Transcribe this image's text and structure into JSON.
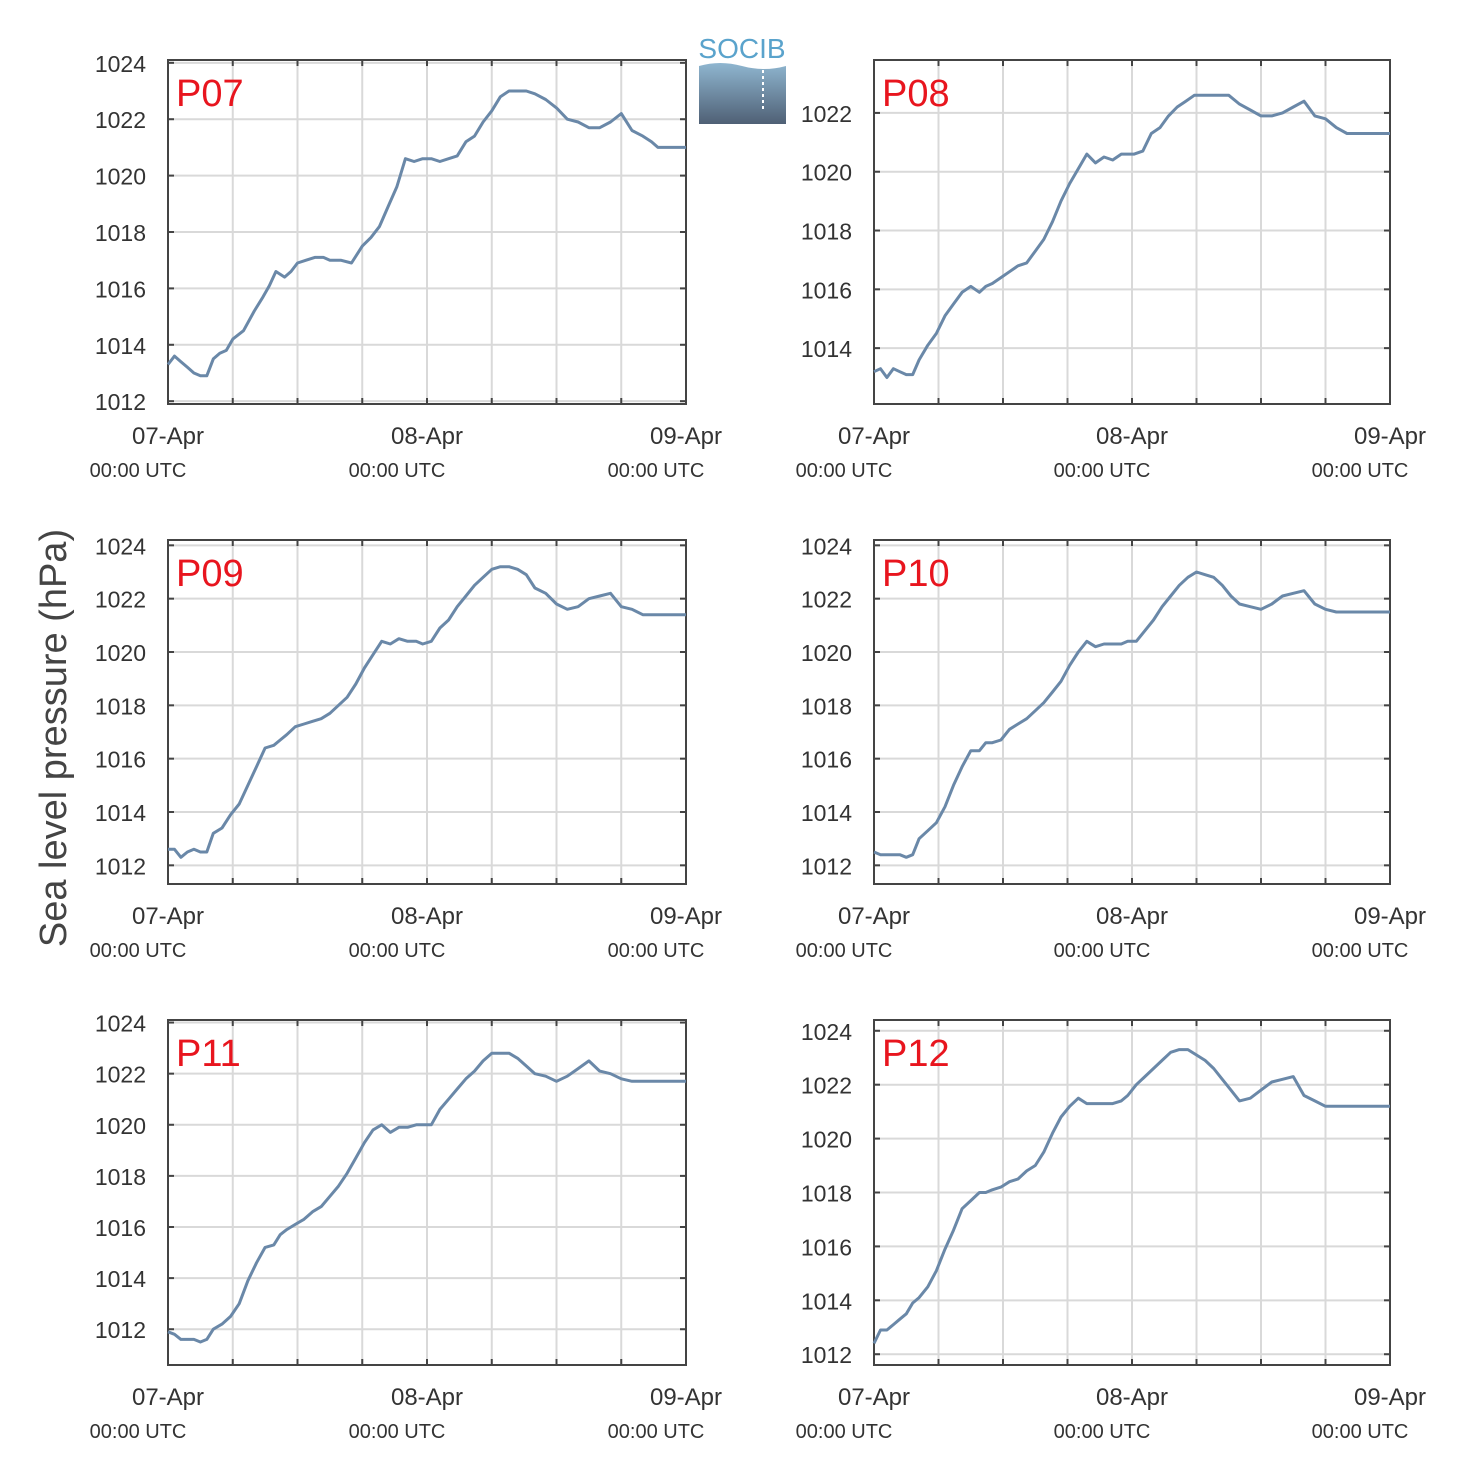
{
  "figure": {
    "ylabel": "Sea level pressure (hPa)",
    "logo_text": "SOCIB",
    "colors": {
      "line": "#6a88a8",
      "grid": "#d9d9d9",
      "axis": "#444444",
      "panel_label": "#e8151e",
      "logo_text": "#5aa3cc",
      "logo_top": "#8fb6d0",
      "logo_bottom": "#4f6075"
    }
  },
  "chart_data": [
    {
      "type": "line",
      "panel_label": "P07",
      "x_ticks": [
        {
          "top": "07-Apr",
          "bottom": "00:00 UTC"
        },
        {
          "top": "08-Apr",
          "bottom": "00:00 UTC"
        },
        {
          "top": "09-Apr",
          "bottom": "00:00 UTC"
        }
      ],
      "xlim": [
        0,
        48
      ],
      "ylim": [
        1011.9,
        1024.1
      ],
      "yticks": [
        1012,
        1014,
        1016,
        1018,
        1020,
        1022,
        1024
      ],
      "grid": true,
      "series": [
        {
          "x": [
            0,
            0.6,
            1.2,
            1.8,
            2.4,
            3,
            3.6,
            4.2,
            4.8,
            5.4,
            6,
            7,
            8,
            8.8,
            9.4,
            10,
            10.8,
            11.4,
            12,
            12.8,
            13.6,
            14.4,
            15,
            16,
            17,
            18,
            18.8,
            19.6,
            20.4,
            21.2,
            21.6,
            22,
            22.8,
            23.6,
            24.4,
            25.2,
            26,
            26.8,
            27.6,
            28.4,
            29.2,
            30,
            30.8,
            31.6,
            32.4,
            33.2,
            34,
            35,
            36,
            37,
            38,
            39,
            40,
            41,
            42,
            43,
            44,
            44.8,
            45.4,
            46,
            46.6,
            47.2,
            48
          ],
          "y": [
            1013.3,
            1013.6,
            1013.4,
            1013.2,
            1013,
            1012.9,
            1012.9,
            1013.5,
            1013.7,
            1013.8,
            1014.2,
            1014.5,
            1015.2,
            1015.7,
            1016.1,
            1016.6,
            1016.4,
            1016.6,
            1016.9,
            1017,
            1017.1,
            1017.1,
            1017,
            1017,
            1016.9,
            1017.5,
            1017.8,
            1018.2,
            1018.9,
            1019.6,
            1020.1,
            1020.6,
            1020.5,
            1020.6,
            1020.6,
            1020.5,
            1020.6,
            1020.7,
            1021.2,
            1021.4,
            1021.9,
            1022.3,
            1022.8,
            1023,
            1023,
            1023,
            1022.9,
            1022.7,
            1022.4,
            1022,
            1021.9,
            1021.7,
            1021.7,
            1021.9,
            1022.2,
            1021.6,
            1021.4,
            1021.2,
            1021,
            1021,
            1021,
            1021,
            1021
          ]
        }
      ]
    },
    {
      "type": "line",
      "panel_label": "P08",
      "x_ticks": [
        {
          "top": "07-Apr",
          "bottom": "00:00 UTC"
        },
        {
          "top": "08-Apr",
          "bottom": "00:00 UTC"
        },
        {
          "top": "09-Apr",
          "bottom": "00:00 UTC"
        }
      ],
      "xlim": [
        0,
        48
      ],
      "ylim": [
        1012.1,
        1023.8
      ],
      "yticks": [
        1014,
        1016,
        1018,
        1020,
        1022
      ],
      "grid": true,
      "series": [
        {
          "x": [
            0,
            0.6,
            1.2,
            1.8,
            2.4,
            3,
            3.6,
            4.2,
            5,
            5.8,
            6.6,
            7.4,
            8.2,
            9,
            9.8,
            10.4,
            11,
            11.8,
            12.6,
            13.4,
            14.2,
            15,
            15.8,
            16.6,
            17.4,
            18.2,
            19,
            19.8,
            20.6,
            21.4,
            22.2,
            23,
            23.4,
            24.2,
            25,
            25.8,
            26.6,
            27.4,
            28.2,
            29,
            29.8,
            30.6,
            31.4,
            32.2,
            33,
            34,
            35,
            36,
            37,
            38,
            39,
            40,
            41,
            42,
            43,
            44,
            44.6,
            45.2,
            46,
            46.8,
            47.4,
            48
          ],
          "y": [
            1013.2,
            1013.3,
            1013,
            1013.3,
            1013.2,
            1013.1,
            1013.1,
            1013.6,
            1014.1,
            1014.5,
            1015.1,
            1015.5,
            1015.9,
            1016.1,
            1015.9,
            1016.1,
            1016.2,
            1016.4,
            1016.6,
            1016.8,
            1016.9,
            1017.3,
            1017.7,
            1018.3,
            1019,
            1019.6,
            1020.1,
            1020.6,
            1020.3,
            1020.5,
            1020.4,
            1020.6,
            1020.6,
            1020.6,
            1020.7,
            1021.3,
            1021.5,
            1021.9,
            1022.2,
            1022.4,
            1022.6,
            1022.6,
            1022.6,
            1022.6,
            1022.6,
            1022.3,
            1022.1,
            1021.9,
            1021.9,
            1022,
            1022.2,
            1022.4,
            1021.9,
            1021.8,
            1021.5,
            1021.3,
            1021.3,
            1021.3,
            1021.3,
            1021.3,
            1021.3,
            1021.3
          ]
        }
      ]
    },
    {
      "type": "line",
      "panel_label": "P09",
      "x_ticks": [
        {
          "top": "07-Apr",
          "bottom": "00:00 UTC"
        },
        {
          "top": "08-Apr",
          "bottom": "00:00 UTC"
        },
        {
          "top": "09-Apr",
          "bottom": "00:00 UTC"
        }
      ],
      "xlim": [
        0,
        48
      ],
      "ylim": [
        1011.3,
        1024.2
      ],
      "yticks": [
        1012,
        1014,
        1016,
        1018,
        1020,
        1022,
        1024
      ],
      "grid": true,
      "series": [
        {
          "x": [
            0,
            0.6,
            1.2,
            1.8,
            2.4,
            3,
            3.6,
            4.2,
            5,
            5.8,
            6.6,
            7.4,
            8.2,
            9,
            9.8,
            10.4,
            11,
            11.8,
            12.6,
            13.4,
            14.2,
            15,
            15.8,
            16.6,
            17.4,
            18.2,
            19,
            19.8,
            20.6,
            21.4,
            22.2,
            23,
            23.6,
            24.4,
            25.2,
            26,
            26.8,
            27.6,
            28.4,
            29.2,
            30,
            30.8,
            31.6,
            32.4,
            33.2,
            34,
            35,
            36,
            37,
            38,
            39,
            40,
            41,
            42,
            43,
            44,
            44.6,
            45.2,
            46,
            46.8,
            47.4,
            48
          ],
          "y": [
            1012.6,
            1012.6,
            1012.3,
            1012.5,
            1012.6,
            1012.5,
            1012.5,
            1013.2,
            1013.4,
            1013.9,
            1014.3,
            1015,
            1015.7,
            1016.4,
            1016.5,
            1016.7,
            1016.9,
            1017.2,
            1017.3,
            1017.4,
            1017.5,
            1017.7,
            1018,
            1018.3,
            1018.8,
            1019.4,
            1019.9,
            1020.4,
            1020.3,
            1020.5,
            1020.4,
            1020.4,
            1020.3,
            1020.4,
            1020.9,
            1021.2,
            1021.7,
            1022.1,
            1022.5,
            1022.8,
            1023.1,
            1023.2,
            1023.2,
            1023.1,
            1022.9,
            1022.4,
            1022.2,
            1021.8,
            1021.6,
            1021.7,
            1022,
            1022.1,
            1022.2,
            1021.7,
            1021.6,
            1021.4,
            1021.4,
            1021.4,
            1021.4,
            1021.4,
            1021.4,
            1021.4
          ]
        }
      ]
    },
    {
      "type": "line",
      "panel_label": "P10",
      "x_ticks": [
        {
          "top": "07-Apr",
          "bottom": "00:00 UTC"
        },
        {
          "top": "08-Apr",
          "bottom": "00:00 UTC"
        },
        {
          "top": "09-Apr",
          "bottom": "00:00 UTC"
        }
      ],
      "xlim": [
        0,
        48
      ],
      "ylim": [
        1011.3,
        1024.2
      ],
      "yticks": [
        1012,
        1014,
        1016,
        1018,
        1020,
        1022,
        1024
      ],
      "grid": true,
      "series": [
        {
          "x": [
            0,
            0.6,
            1.2,
            1.8,
            2.4,
            3,
            3.6,
            4.2,
            5,
            5.8,
            6.6,
            7.4,
            8.2,
            9,
            9.8,
            10.4,
            11,
            11.8,
            12.6,
            13.4,
            14.2,
            15,
            15.8,
            16.6,
            17.4,
            18.2,
            19,
            19.8,
            20.6,
            21.4,
            22.2,
            23,
            23.6,
            24.4,
            25.2,
            26,
            26.8,
            27.6,
            28.4,
            29.2,
            30,
            30.8,
            31.6,
            32.4,
            33.2,
            34,
            35,
            36,
            37,
            38,
            39,
            40,
            41,
            42,
            43,
            44,
            44.6,
            45.2,
            46,
            46.8,
            47.4,
            48
          ],
          "y": [
            1012.5,
            1012.4,
            1012.4,
            1012.4,
            1012.4,
            1012.3,
            1012.4,
            1013,
            1013.3,
            1013.6,
            1014.2,
            1015,
            1015.7,
            1016.3,
            1016.3,
            1016.6,
            1016.6,
            1016.7,
            1017.1,
            1017.3,
            1017.5,
            1017.8,
            1018.1,
            1018.5,
            1018.9,
            1019.5,
            1020,
            1020.4,
            1020.2,
            1020.3,
            1020.3,
            1020.3,
            1020.4,
            1020.4,
            1020.8,
            1021.2,
            1021.7,
            1022.1,
            1022.5,
            1022.8,
            1023,
            1022.9,
            1022.8,
            1022.5,
            1022.1,
            1021.8,
            1021.7,
            1021.6,
            1021.8,
            1022.1,
            1022.2,
            1022.3,
            1021.8,
            1021.6,
            1021.5,
            1021.5,
            1021.5,
            1021.5,
            1021.5,
            1021.5,
            1021.5,
            1021.5
          ]
        }
      ]
    },
    {
      "type": "line",
      "panel_label": "P11",
      "x_ticks": [
        {
          "top": "07-Apr",
          "bottom": "00:00 UTC"
        },
        {
          "top": "08-Apr",
          "bottom": "00:00 UTC"
        },
        {
          "top": "09-Apr",
          "bottom": "00:00 UTC"
        }
      ],
      "xlim": [
        0,
        48
      ],
      "ylim": [
        1010.6,
        1024.1
      ],
      "yticks": [
        1012,
        1014,
        1016,
        1018,
        1020,
        1022,
        1024
      ],
      "grid": true,
      "series": [
        {
          "x": [
            0,
            0.6,
            1.2,
            1.8,
            2.4,
            3,
            3.6,
            4.2,
            5,
            5.8,
            6.6,
            7.4,
            8.2,
            9,
            9.8,
            10.4,
            11,
            11.8,
            12.6,
            13.4,
            14.2,
            15,
            15.8,
            16.6,
            17.4,
            18.2,
            19,
            19.8,
            20.6,
            21.4,
            22.2,
            23,
            23.6,
            24.4,
            25.2,
            26,
            26.8,
            27.6,
            28.4,
            29.2,
            30,
            30.8,
            31.6,
            32.4,
            33.2,
            34,
            35,
            36,
            37,
            38,
            39,
            40,
            41,
            42,
            43,
            44,
            44.6,
            45.2,
            46,
            46.8,
            47.4,
            48
          ],
          "y": [
            1011.9,
            1011.8,
            1011.6,
            1011.6,
            1011.6,
            1011.5,
            1011.6,
            1012,
            1012.2,
            1012.5,
            1013,
            1013.9,
            1014.6,
            1015.2,
            1015.3,
            1015.7,
            1015.9,
            1016.1,
            1016.3,
            1016.6,
            1016.8,
            1017.2,
            1017.6,
            1018.1,
            1018.7,
            1019.3,
            1019.8,
            1020,
            1019.7,
            1019.9,
            1019.9,
            1020,
            1020,
            1020,
            1020.6,
            1021,
            1021.4,
            1021.8,
            1022.1,
            1022.5,
            1022.8,
            1022.8,
            1022.8,
            1022.6,
            1022.3,
            1022,
            1021.9,
            1021.7,
            1021.9,
            1022.2,
            1022.5,
            1022.1,
            1022,
            1021.8,
            1021.7,
            1021.7,
            1021.7,
            1021.7,
            1021.7,
            1021.7,
            1021.7,
            1021.7
          ]
        }
      ]
    },
    {
      "type": "line",
      "panel_label": "P12",
      "x_ticks": [
        {
          "top": "07-Apr",
          "bottom": "00:00 UTC"
        },
        {
          "top": "08-Apr",
          "bottom": "00:00 UTC"
        },
        {
          "top": "09-Apr",
          "bottom": "00:00 UTC"
        }
      ],
      "xlim": [
        0,
        48
      ],
      "ylim": [
        1011.6,
        1024.4
      ],
      "yticks": [
        1012,
        1014,
        1016,
        1018,
        1020,
        1022,
        1024
      ],
      "grid": true,
      "series": [
        {
          "x": [
            0,
            0.6,
            1.2,
            1.8,
            2.4,
            3,
            3.6,
            4.2,
            5,
            5.8,
            6.6,
            7.4,
            8.2,
            9,
            9.8,
            10.4,
            11,
            11.8,
            12.6,
            13.4,
            14.2,
            15,
            15.8,
            16.6,
            17.4,
            18.2,
            19,
            19.8,
            20.6,
            21.4,
            22.2,
            23,
            23.6,
            24.4,
            25.2,
            26,
            26.8,
            27.6,
            28.4,
            29.2,
            30,
            30.8,
            31.6,
            32.4,
            33.2,
            34,
            35,
            36,
            37,
            38,
            39,
            40,
            41,
            42,
            43,
            44,
            44.6,
            45.2,
            46,
            46.8,
            47.4,
            48
          ],
          "y": [
            1012.4,
            1012.9,
            1012.9,
            1013.1,
            1013.3,
            1013.5,
            1013.9,
            1014.1,
            1014.5,
            1015.1,
            1015.9,
            1016.6,
            1017.4,
            1017.7,
            1018,
            1018,
            1018.1,
            1018.2,
            1018.4,
            1018.5,
            1018.8,
            1019,
            1019.5,
            1020.2,
            1020.8,
            1021.2,
            1021.5,
            1021.3,
            1021.3,
            1021.3,
            1021.3,
            1021.4,
            1021.6,
            1022,
            1022.3,
            1022.6,
            1022.9,
            1023.2,
            1023.3,
            1023.3,
            1023.1,
            1022.9,
            1022.6,
            1022.2,
            1021.8,
            1021.4,
            1021.5,
            1021.8,
            1022.1,
            1022.2,
            1022.3,
            1021.6,
            1021.4,
            1021.2,
            1021.2,
            1021.2,
            1021.2,
            1021.2,
            1021.2,
            1021.2,
            1021.2,
            1021.2
          ]
        }
      ]
    }
  ]
}
